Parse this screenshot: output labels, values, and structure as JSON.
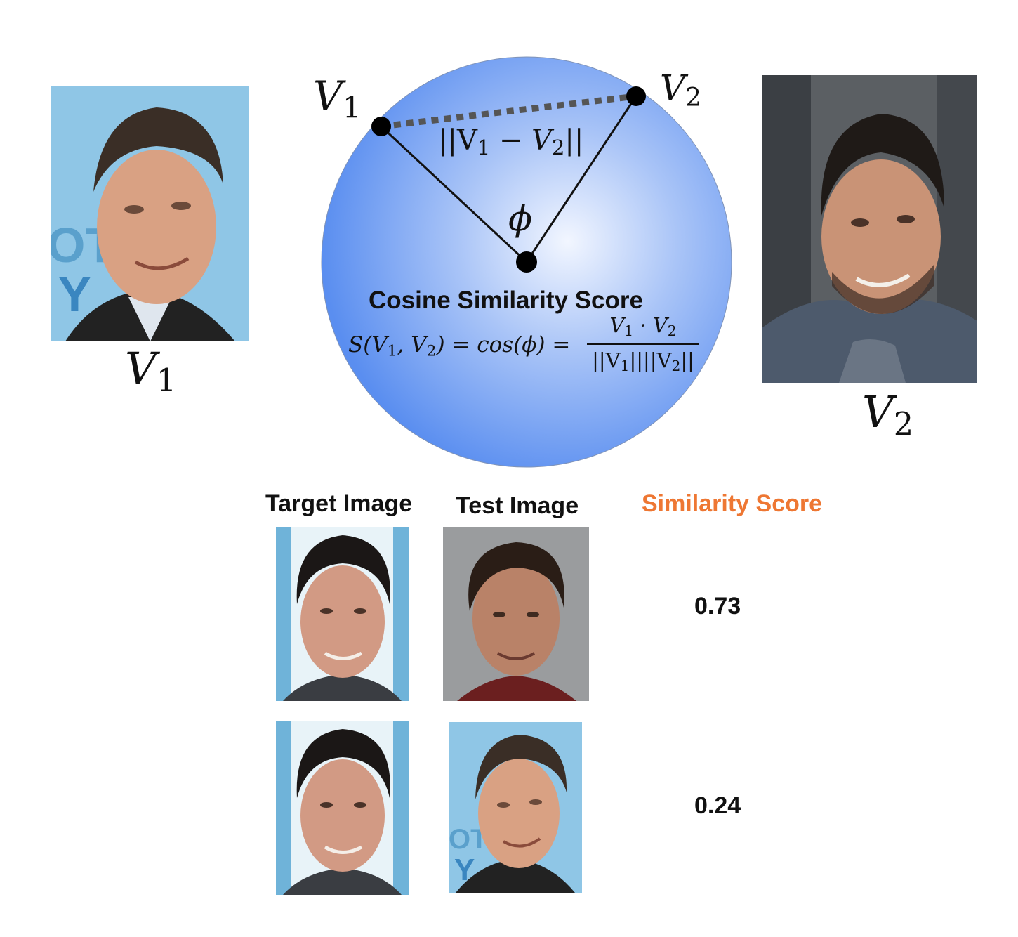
{
  "diagram": {
    "title": "Cosine Similarity Score",
    "angle_label": "ϕ",
    "point1_label": "V",
    "point1_sub": "1",
    "point2_label": "V",
    "point2_sub": "2",
    "distance_label_pre": "||V",
    "distance_label_sub1": "1",
    "distance_label_mid": " − V",
    "distance_label_sub2": "2",
    "distance_label_post": "||",
    "formula_lhs_a": "S(V",
    "formula_lhs_sub1": "1",
    "formula_lhs_b": ", V",
    "formula_lhs_sub2": "2",
    "formula_lhs_c": ") = cos(ϕ) =",
    "formula_num_a": "V",
    "formula_num_sub1": "1",
    "formula_num_b": " · V",
    "formula_num_sub2": "2",
    "formula_den_a": "||V",
    "formula_den_sub1": "1",
    "formula_den_b": "||||V",
    "formula_den_sub2": "2",
    "formula_den_c": "||",
    "circle_color": "#5b8ff0"
  },
  "photos": {
    "left_label": "V",
    "left_sub": "1",
    "right_label": "V",
    "right_sub": "2"
  },
  "table": {
    "header_target": "Target Image",
    "header_test": "Test Image",
    "header_score": "Similarity Score",
    "score_color": "#ee7733",
    "rows": [
      {
        "score": "0.73"
      },
      {
        "score": "0.24"
      }
    ]
  }
}
